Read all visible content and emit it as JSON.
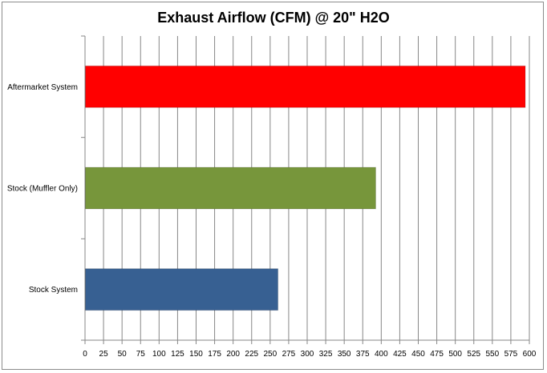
{
  "chart_data": {
    "type": "bar",
    "orientation": "horizontal",
    "title": "Exhaust Airflow (CFM) @ 20\" H2O",
    "xlabel": "",
    "ylabel": "",
    "categories": [
      "Aftermarket System",
      "Stock (Muffler Only)",
      "Stock System"
    ],
    "values": [
      594,
      392,
      260
    ],
    "colors": [
      "#ff0000",
      "#77963b",
      "#376092"
    ],
    "xlim": [
      0,
      600
    ],
    "x_ticks": [
      0,
      25,
      50,
      75,
      100,
      125,
      150,
      175,
      200,
      225,
      250,
      275,
      300,
      325,
      350,
      375,
      400,
      425,
      450,
      475,
      500,
      525,
      550,
      575,
      600
    ],
    "grid": "vertical",
    "legend": "none"
  }
}
